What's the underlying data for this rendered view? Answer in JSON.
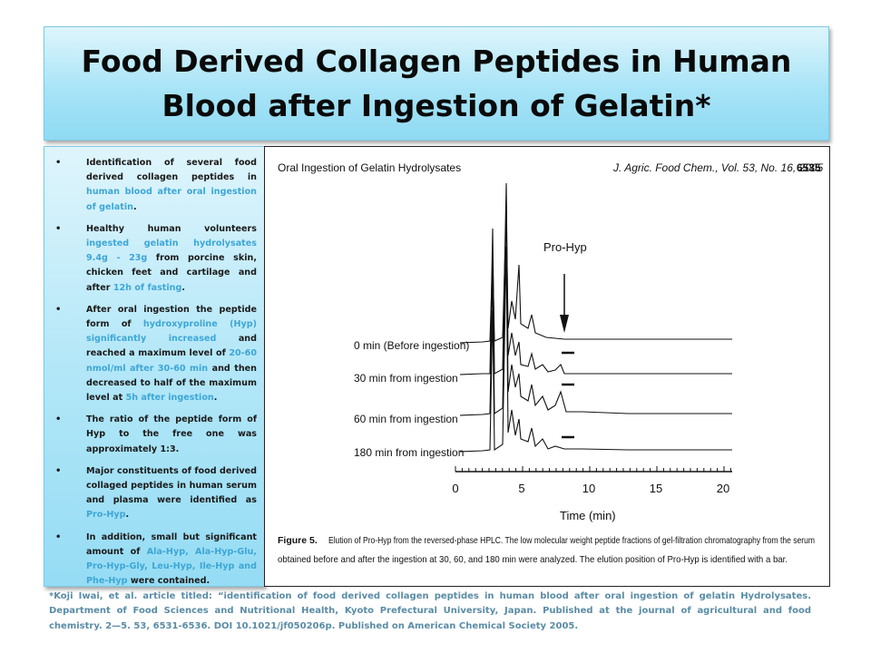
{
  "title": {
    "line1": "Food Derived Collagen Peptides in Human",
    "line2": "Blood after Ingestion of Gelatin*"
  },
  "bullets": [
    {
      "segments": [
        {
          "text": "Identification of several food derived collagen peptides in ",
          "hl": false
        },
        {
          "text": "human blood after oral ingestion of gelatin",
          "hl": true
        },
        {
          "text": ".",
          "hl": false
        }
      ]
    },
    {
      "segments": [
        {
          "text": "Healthy human volunteers ",
          "hl": false
        },
        {
          "text": "ingested gelatin hydrolysates 9.4g - 23g",
          "hl": true
        },
        {
          "text": " from porcine skin, chicken feet and cartilage and after ",
          "hl": false
        },
        {
          "text": "12h of fasting",
          "hl": true
        },
        {
          "text": ".",
          "hl": false
        }
      ]
    },
    {
      "segments": [
        {
          "text": "After oral ingestion the peptide form of ",
          "hl": false
        },
        {
          "text": "hydroxyproline (Hyp) significantly increased",
          "hl": true
        },
        {
          "text": " and reached a maximum level of ",
          "hl": false
        },
        {
          "text": "20-60 nmol/ml after 30-60 min",
          "hl": true
        },
        {
          "text": " and then decreased to half of the maximum level at ",
          "hl": false
        },
        {
          "text": "5h after ingestion",
          "hl": true
        },
        {
          "text": ".",
          "hl": false
        }
      ]
    },
    {
      "segments": [
        {
          "text": "The ratio of the peptide form of Hyp to the free one was approximately 1:3.",
          "hl": false
        }
      ]
    },
    {
      "segments": [
        {
          "text": "Major constituents of food derived collaged peptides in human serum and plasma were identified as ",
          "hl": false
        },
        {
          "text": "Pro-Hyp",
          "hl": true
        },
        {
          "text": ".",
          "hl": false
        }
      ]
    },
    {
      "segments": [
        {
          "text": "In addition, small but significant amount of ",
          "hl": false
        },
        {
          "text": "Ala-Hyp, Ala-Hyp-Glu, Pro-Hyp-Gly, Leu-Hyp, Ile-Hyp and Phe-Hyp",
          "hl": true
        },
        {
          "text": " were contained",
          "hl": false
        },
        {
          "text": ".",
          "hl": false
        }
      ]
    }
  ],
  "figure": {
    "header_left": "Oral Ingestion of Gelatin Hydrolysates",
    "header_journal": "J. Agric. Food Chem., Vol. 53, No. 16, 2005",
    "header_page": "6535",
    "peak_label": "Pro-Hyp",
    "trace_labels": [
      "0 min (Before ingestion)",
      "30 min from ingestion",
      "60 min from ingestion",
      "180 min from ingestion"
    ],
    "x_ticks": [
      "0",
      "5",
      "10",
      "15",
      "20"
    ],
    "x_label": "Time (min)",
    "caption_bold": "Figure 5.",
    "caption_line1": "Elution of Pro-Hyp from the reversed-phase HPLC. The low molecular weight peptide fractions of gel-filtration chromatography from the serum",
    "caption_line2": "obtained before and after the ingestion at 30, 60, and 180 min were analyzed. The elution position of Pro-Hyp is identified with a bar."
  },
  "footnote": "*Koji Iwai, et al. article titled: “identification of food derived collagen peptides in human blood after oral ingestion of gelatin Hydrolysates. Department of Food Sciences and Nutritional Health, Kyoto Prefectural University, Japan. Published at the journal of agricultural and food chemistry. 2—5. 53, 6531-6536. DOI 10.1021/jf050206p. Published on American Chemical Society 2005.",
  "colors": {
    "title_bg": "#a8e4f7",
    "highlight": "#3ea6d6",
    "footnote": "#5a8ca6"
  }
}
